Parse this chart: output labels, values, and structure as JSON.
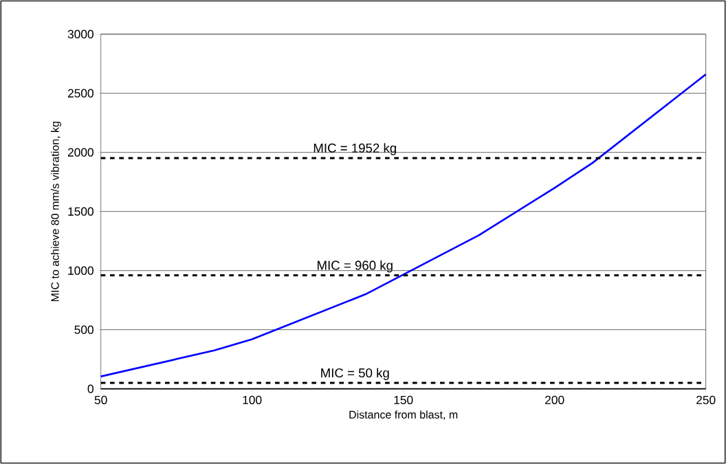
{
  "chart_data": {
    "type": "line",
    "xlabel": "Distance from blast, m",
    "ylabel": "MIC to achieve 80 mm/s vibration, kg",
    "x": [
      50,
      87.5,
      100,
      137.5,
      175,
      200,
      212.5,
      250
    ],
    "series": [
      {
        "color": "#0000ff",
        "values": [
          105,
          325,
          420,
          800,
          1300,
          1700,
          1910,
          2660
        ]
      }
    ],
    "xlim": [
      50,
      250
    ],
    "xticks": [
      50,
      100,
      150,
      200,
      250
    ],
    "ylim": [
      0,
      3000
    ],
    "yticks": [
      0,
      500,
      1000,
      1500,
      2000,
      2500,
      3000
    ],
    "grid": "y",
    "marker": "none",
    "line_style": "solid",
    "ref_lines": [
      {
        "axis": "y",
        "value": 1952,
        "label": "MIC = 1952 kg",
        "color": "#000000",
        "line_style": "dashed"
      },
      {
        "axis": "y",
        "value": 960,
        "label": "MIC = 960 kg",
        "color": "#000000",
        "line_style": "dashed"
      },
      {
        "axis": "y",
        "value": 50,
        "label": "MIC = 50 kg",
        "color": "#000000",
        "line_style": "dashed"
      }
    ]
  }
}
